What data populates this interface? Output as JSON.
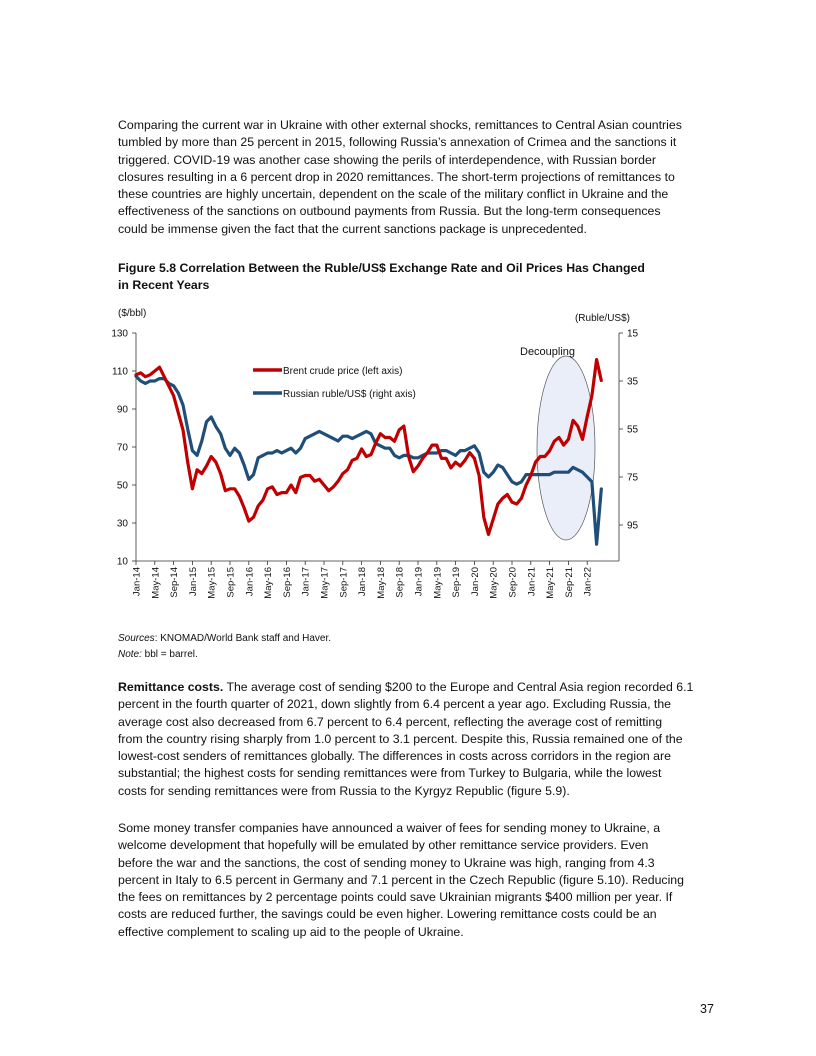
{
  "paragraph1": [
    "Comparing the current war in Ukraine with other external shocks, remittances to Central Asian countries",
    "tumbled by more than 25 percent in 2015, following Russia’s annexation of Crimea and the sanctions it",
    "triggered. COVID-19 was another case showing the perils of interdependence, with Russian border",
    "closures resulting in a 6 percent drop in 2020 remittances. The short-term projections of remittances to",
    "these countries are highly uncertain, dependent on the scale of the military conflict in Ukraine and the",
    "effectiveness of the sanctions on outbound payments from Russia. But the long-term consequences",
    "could be immense given the fact that the current sanctions package is unprecedented."
  ],
  "figure": {
    "caption": [
      "Figure 5.8 Correlation Between the Ruble/US$ Exchange Rate and Oil Prices Has Changed",
      "in Recent Years"
    ],
    "sources_label": "Sources",
    "sources_text": ": KNOMAD/World Bank staff and Haver.",
    "note_label": "Note:",
    "note_text": " bbl = barrel."
  },
  "chart_data": {
    "type": "line",
    "left_axis_label": "($/bbl)",
    "right_axis_label": "(Ruble/US$)",
    "left_ylim": [
      10,
      130
    ],
    "left_ticks": [
      10,
      30,
      50,
      70,
      90,
      110,
      130
    ],
    "right_ylim": [
      110,
      15
    ],
    "right_inverted": true,
    "right_ticks": [
      15,
      35,
      55,
      75,
      95
    ],
    "x_start": "Jan-14",
    "x_end": "Apr-22",
    "x_frequency": "monthly",
    "x_tick_labels": [
      "Jan-14",
      "May-14",
      "Sep-14",
      "Jan-15",
      "May-15",
      "Sep-15",
      "Jan-16",
      "May-16",
      "Sep-16",
      "Jan-17",
      "May-17",
      "Sep-17",
      "Jan-18",
      "May-18",
      "Sep-18",
      "Jan-19",
      "May-19",
      "Sep-19",
      "Jan-20",
      "May-20",
      "Sep-20",
      "Jan-21",
      "May-21",
      "Sep-21",
      "Jan-22"
    ],
    "annotation": "Decoupling",
    "annotation_period": [
      "Jan-21",
      "Apr-22"
    ],
    "legend_position": "top-center",
    "series": [
      {
        "name": "Brent crude price (left axis)",
        "axis": "left",
        "color": "#C00000",
        "values": [
          108,
          109,
          107,
          108,
          110,
          112,
          107,
          102,
          97,
          88,
          79,
          62,
          48,
          58,
          56,
          60,
          65,
          62,
          56,
          47,
          48,
          48,
          44,
          38,
          31,
          33,
          39,
          42,
          48,
          49,
          45,
          46,
          46,
          50,
          46,
          54,
          55,
          55,
          52,
          53,
          50,
          47,
          49,
          52,
          56,
          58,
          63,
          64,
          69,
          65,
          66,
          72,
          77,
          75,
          75,
          73,
          79,
          81,
          65,
          57,
          60,
          64,
          67,
          71,
          71,
          64,
          64,
          59,
          62,
          60,
          63,
          67,
          64,
          55,
          33,
          24,
          32,
          40,
          43,
          45,
          41,
          40,
          43,
          50,
          55,
          62,
          65,
          65,
          68,
          73,
          75,
          71,
          74,
          84,
          81,
          74,
          86,
          97,
          116,
          105
        ]
      },
      {
        "name": "Russian ruble/US$ (right axis)",
        "axis": "right",
        "color": "#1F4E79",
        "values": [
          33,
          35,
          36,
          35,
          35,
          34,
          34,
          36,
          37,
          40,
          45,
          55,
          64,
          66,
          60,
          52,
          50,
          54,
          57,
          63,
          66,
          63,
          65,
          70,
          76,
          74,
          67,
          66,
          65,
          65,
          64,
          65,
          64,
          63,
          65,
          63,
          59,
          58,
          57,
          56,
          57,
          58,
          59,
          60,
          58,
          58,
          59,
          58,
          57,
          56,
          57,
          61,
          62,
          63,
          63,
          66,
          67,
          66,
          66,
          67,
          67,
          66,
          65,
          65,
          65,
          64,
          64,
          65,
          66,
          64,
          64,
          63,
          62,
          65,
          73,
          75,
          73,
          70,
          71,
          74,
          77,
          78,
          77,
          74,
          74,
          74,
          74,
          74,
          74,
          73,
          73,
          73,
          73,
          71,
          72,
          73,
          75,
          77,
          103,
          80
        ]
      }
    ]
  },
  "paragraph2": {
    "lead": "Remittance costs.",
    "lines": [
      " The average cost of sending $200 to the Europe and Central Asia region recorded 6.1",
      "percent in the fourth quarter of 2021, down slightly from 6.4 percent a year ago. Excluding Russia, the",
      "average cost also decreased from 6.7 percent to 6.4 percent, reflecting the average cost of remitting",
      "from the country rising sharply from 1.0 percent to 3.1 percent. Despite this, Russia remained one of the",
      "lowest-cost senders of remittances globally. The differences in costs across corridors in the region are",
      "substantial; the highest costs for sending remittances were from Turkey to Bulgaria, while the lowest",
      "costs for sending remittances were from Russia to the Kyrgyz Republic (figure 5.9)."
    ]
  },
  "paragraph3": [
    "Some money transfer companies have announced a waiver of fees for sending money to Ukraine, a",
    "welcome development that hopefully will be emulated by other remittance service providers. Even",
    "before the war and the sanctions, the cost of sending money to Ukraine was high, ranging from 4.3",
    "percent in Italy to 6.5 percent in Germany and 7.1 percent in the Czech Republic (figure 5.10). Reducing",
    "the fees on remittances by 2 percentage points could save Ukrainian migrants $400 million per year. If",
    "costs are reduced further, the savings could be even higher. Lowering remittance costs could be an",
    "effective complement to scaling up aid to the people of Ukraine."
  ],
  "page_number": "37"
}
